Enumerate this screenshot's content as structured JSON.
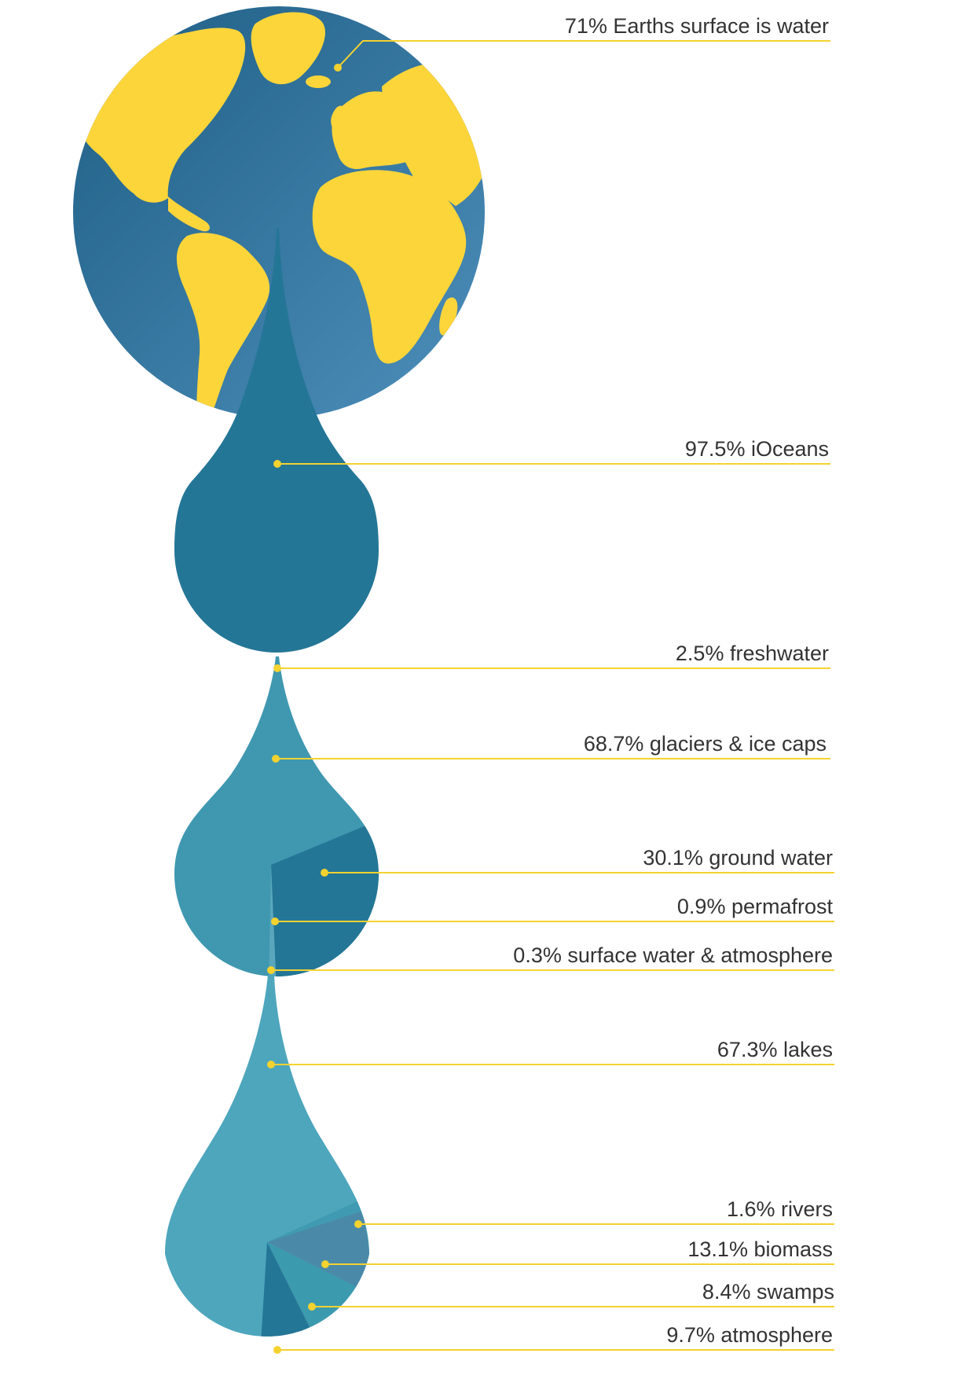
{
  "colors": {
    "ocean_dark": "#1f5f85",
    "ocean_light": "#4d8fbb",
    "land": "#fcd53a",
    "drop_oceans": "#247696",
    "drop_fresh": "#3f98b0",
    "drop_fresh_dark": "#247696",
    "drop_surface": "#4da6bc",
    "slice_biomass": "#4a8aa8",
    "slice_swamps": "#3c9aae",
    "slice_atmosphere": "#247696",
    "leader_line": "#f4d230"
  },
  "labels": {
    "earth": "71% Earths surface is water",
    "oceans": "97.5% iOceans",
    "freshwater": "2.5% freshwater",
    "glaciers": "68.7% glaciers & ice caps",
    "ground": "30.1% ground water",
    "permafrost": "0.9% permafrost",
    "surface": "0.3% surface water & atmosphere",
    "lakes": "67.3% lakes",
    "rivers": "1.6% rivers",
    "biomass": "13.1% biomass",
    "swamps": "8.4% swamps",
    "atmosphere": "9.7% atmosphere"
  }
}
